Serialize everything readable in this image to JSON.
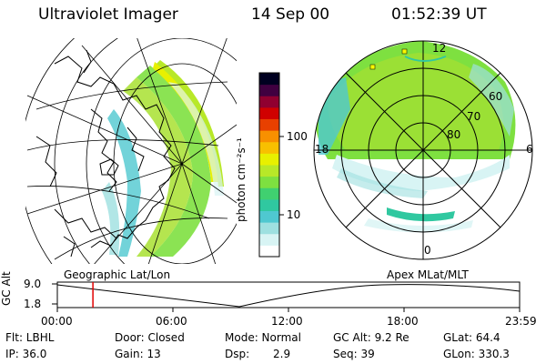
{
  "header": {
    "title": "Ultraviolet Imager",
    "date": "14 Sep 00",
    "time": "01:52:39 UT"
  },
  "colorbar": {
    "unit_label": "photon cm⁻²s⁻¹",
    "ticks": [
      "100",
      "10"
    ],
    "colors": [
      "#ffffff",
      "#d8f4f4",
      "#9ee0e0",
      "#4fc8d0",
      "#30c8a0",
      "#40d070",
      "#7ee040",
      "#b8e828",
      "#e8f000",
      "#f8c000",
      "#f89000",
      "#e84000",
      "#d00000",
      "#900030",
      "#400040",
      "#000020"
    ]
  },
  "polar_plot": {
    "mlt_labels": {
      "top": "12",
      "left": "18",
      "right": "6",
      "bottom": "0"
    },
    "lat_labels": [
      "60",
      "70",
      "80"
    ]
  },
  "projection_labels": {
    "left": "Geographic Lat/Lon",
    "right": "Apex MLat/MLT"
  },
  "altitude_plot": {
    "ylabel": "GC Alt",
    "yticks": [
      "9.0",
      "1.8"
    ],
    "xticks": [
      "00:00",
      "06:00",
      "12:00",
      "18:00",
      "23:59"
    ],
    "current_time_fraction": 0.077
  },
  "status": {
    "flt": "Flt: LBHL",
    "ip": "IP: 36.0",
    "door": "Door: Closed",
    "gain": "Gain: 13",
    "mode": "Mode: Normal",
    "dsp_label": "Dsp:",
    "dsp_value": "2.9",
    "gc_alt": "GC Alt: 9.2 Re",
    "seq": "Seq: 39",
    "glat": "GLat:  64.4",
    "glon": "GLon: 330.3"
  }
}
